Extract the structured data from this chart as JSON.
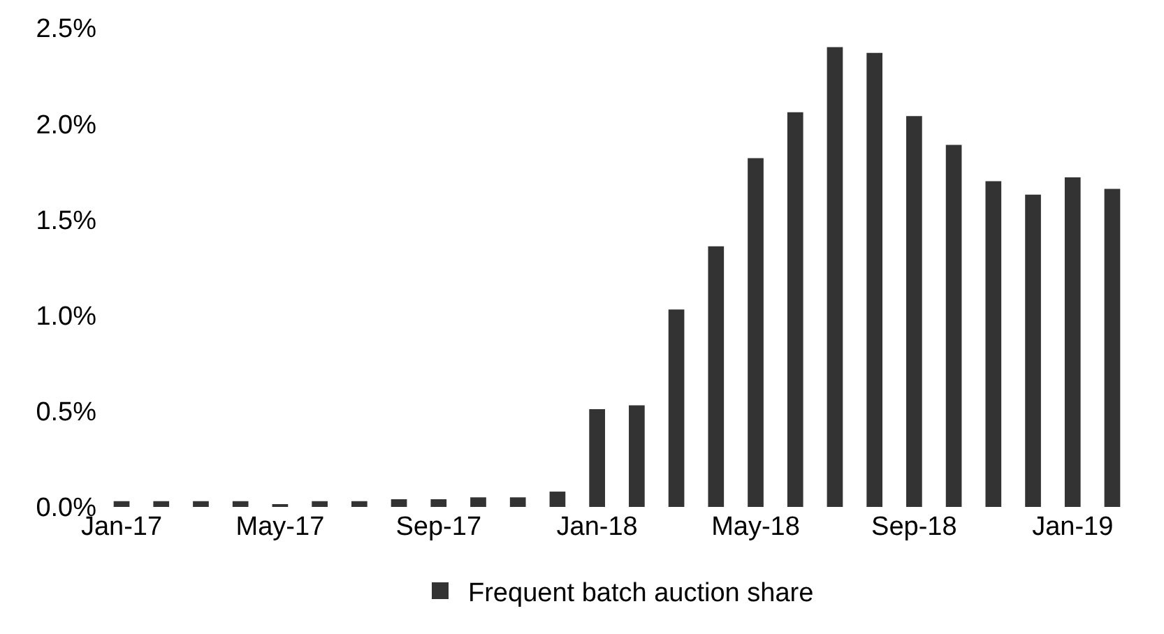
{
  "chart_data": {
    "type": "bar",
    "categories": [
      "Jan-17",
      null,
      null,
      null,
      "May-17",
      null,
      null,
      null,
      "Sep-17",
      null,
      null,
      null,
      "Jan-18",
      null,
      null,
      null,
      "May-18",
      null,
      null,
      null,
      "Sep-18",
      null,
      null,
      null,
      "Jan-19",
      null
    ],
    "series": [
      {
        "name": "Frequent batch auction share",
        "color": "#333333",
        "values": [
          0.03,
          0.03,
          0.03,
          0.03,
          0.01,
          0.03,
          0.03,
          0.04,
          0.04,
          0.05,
          0.05,
          0.08,
          0.51,
          0.53,
          1.03,
          1.36,
          1.82,
          2.06,
          2.4,
          2.37,
          2.04,
          1.89,
          1.7,
          1.63,
          1.72,
          1.66
        ]
      }
    ],
    "ylim": [
      0,
      2.5
    ],
    "yticks": [
      {
        "value": 0,
        "label": "0.0%"
      },
      {
        "value": 0.5,
        "label": "0.5%"
      },
      {
        "value": 1,
        "label": "1.0%"
      },
      {
        "value": 1.5,
        "label": "1.5%"
      },
      {
        "value": 2,
        "label": "2.0%"
      },
      {
        "value": 2.5,
        "label": "2.5%"
      }
    ],
    "grid": false,
    "legend": "bottom"
  }
}
